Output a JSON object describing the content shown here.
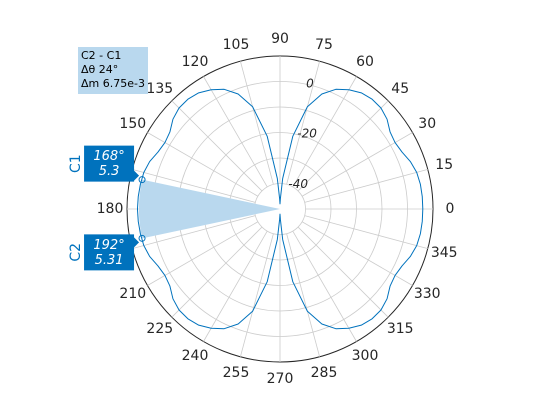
{
  "colors": {
    "trace": "#0072bd",
    "grid": "#cccccc",
    "span_fill": "#b9d8ee",
    "cursor_tag": "#0072bd",
    "text": "#262626"
  },
  "chart_data": {
    "type": "line",
    "coordinate_system": "polar",
    "angle_unit": "degrees",
    "angle_ticks": [
      0,
      15,
      30,
      45,
      60,
      75,
      90,
      105,
      120,
      135,
      150,
      165,
      180,
      195,
      210,
      225,
      240,
      255,
      270,
      285,
      300,
      315,
      330,
      345
    ],
    "angle_tick_labels": [
      "0",
      "15",
      "30",
      "45",
      "60",
      "75",
      "90",
      "105",
      "120",
      "135",
      "150",
      "165",
      "180",
      "195",
      "210",
      "225",
      "240",
      "255",
      "270",
      "285",
      "300",
      "315",
      "330",
      "345"
    ],
    "magnitude_ticks": [
      0,
      -20,
      -40
    ],
    "magnitude_tick_labels": [
      "0",
      "-20",
      "-40"
    ],
    "magnitude_label_angle_deg": 80,
    "rlim": [
      -50,
      10
    ],
    "grid": true,
    "series": [
      {
        "style": "solid",
        "theta_deg": [
          0,
          5,
          10,
          15,
          20,
          25,
          30,
          35,
          40,
          45,
          50,
          55,
          60,
          65,
          70,
          75,
          80,
          85,
          88,
          90,
          92,
          95,
          100,
          105,
          110,
          115,
          120,
          125,
          130,
          135,
          140,
          145,
          150,
          155,
          160,
          165,
          170,
          175,
          180,
          185,
          190,
          195,
          200,
          205,
          210,
          215,
          220,
          225,
          230,
          235,
          240,
          245,
          250,
          255,
          260,
          265,
          268,
          270,
          272,
          275,
          280,
          285,
          290,
          295,
          300,
          305,
          310,
          315,
          320,
          325,
          330,
          335,
          340,
          345,
          350,
          355,
          360
        ],
        "r": [
          6.0,
          6.0,
          5.9,
          5.5,
          4.4,
          2.8,
          2.1,
          2.7,
          4.8,
          6.0,
          6.2,
          5.6,
          4.0,
          1.8,
          -2.0,
          -8.5,
          -21.0,
          -38.0,
          -46.0,
          -48.0,
          -46.0,
          -38.0,
          -21.0,
          -8.5,
          -2.0,
          1.8,
          4.0,
          5.6,
          6.2,
          6.0,
          4.8,
          2.7,
          2.1,
          2.8,
          4.4,
          5.3,
          5.6,
          5.8,
          5.9,
          5.8,
          5.6,
          5.3,
          4.4,
          2.8,
          2.1,
          2.7,
          4.8,
          6.0,
          6.2,
          5.6,
          4.0,
          1.8,
          -2.0,
          -8.5,
          -21.0,
          -38.0,
          -46.0,
          -48.0,
          -46.0,
          -38.0,
          -21.0,
          -8.5,
          -2.0,
          1.8,
          4.0,
          5.6,
          6.2,
          6.0,
          4.8,
          2.7,
          2.1,
          2.8,
          4.4,
          5.5,
          5.9,
          6.0,
          6.0
        ]
      }
    ],
    "cursors": [
      {
        "name": "C1",
        "angle_deg": 168,
        "magnitude": 5.3,
        "angle_label": "168°",
        "magnitude_label": "5.3"
      },
      {
        "name": "C2",
        "angle_deg": 192,
        "magnitude": 5.31,
        "angle_label": "192°",
        "magnitude_label": "5.31"
      }
    ],
    "measurement": {
      "title": "C2 - C1",
      "delta_angle": "Δθ 24°",
      "delta_magnitude": "Δm 6.75e-3"
    }
  }
}
